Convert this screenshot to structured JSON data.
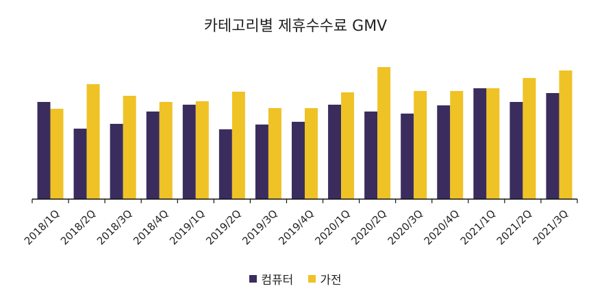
{
  "chart_data": {
    "type": "bar",
    "title": "카테고리별 제휴수수료 GMV",
    "categories": [
      "2018/1Q",
      "2018/2Q",
      "2018/3Q",
      "2018/4Q",
      "2019/1Q",
      "2019/2Q",
      "2019/3Q",
      "2019/4Q",
      "2020/1Q",
      "2020/2Q",
      "2020/3Q",
      "2020/4Q",
      "2021/1Q",
      "2021/2Q",
      "2021/3Q"
    ],
    "series": [
      {
        "name": "컴퓨터",
        "color": "#3a2d5e",
        "values": [
          142,
          103,
          110,
          128,
          138,
          102,
          109,
          113,
          138,
          128,
          125,
          137,
          162,
          142,
          155
        ]
      },
      {
        "name": "가전",
        "color": "#efc226",
        "values": [
          132,
          168,
          151,
          142,
          143,
          157,
          133,
          133,
          156,
          193,
          158,
          158,
          162,
          177,
          188
        ]
      }
    ],
    "ylim": [
      0,
      200
    ],
    "legend_position": "bottom",
    "grid": false
  }
}
